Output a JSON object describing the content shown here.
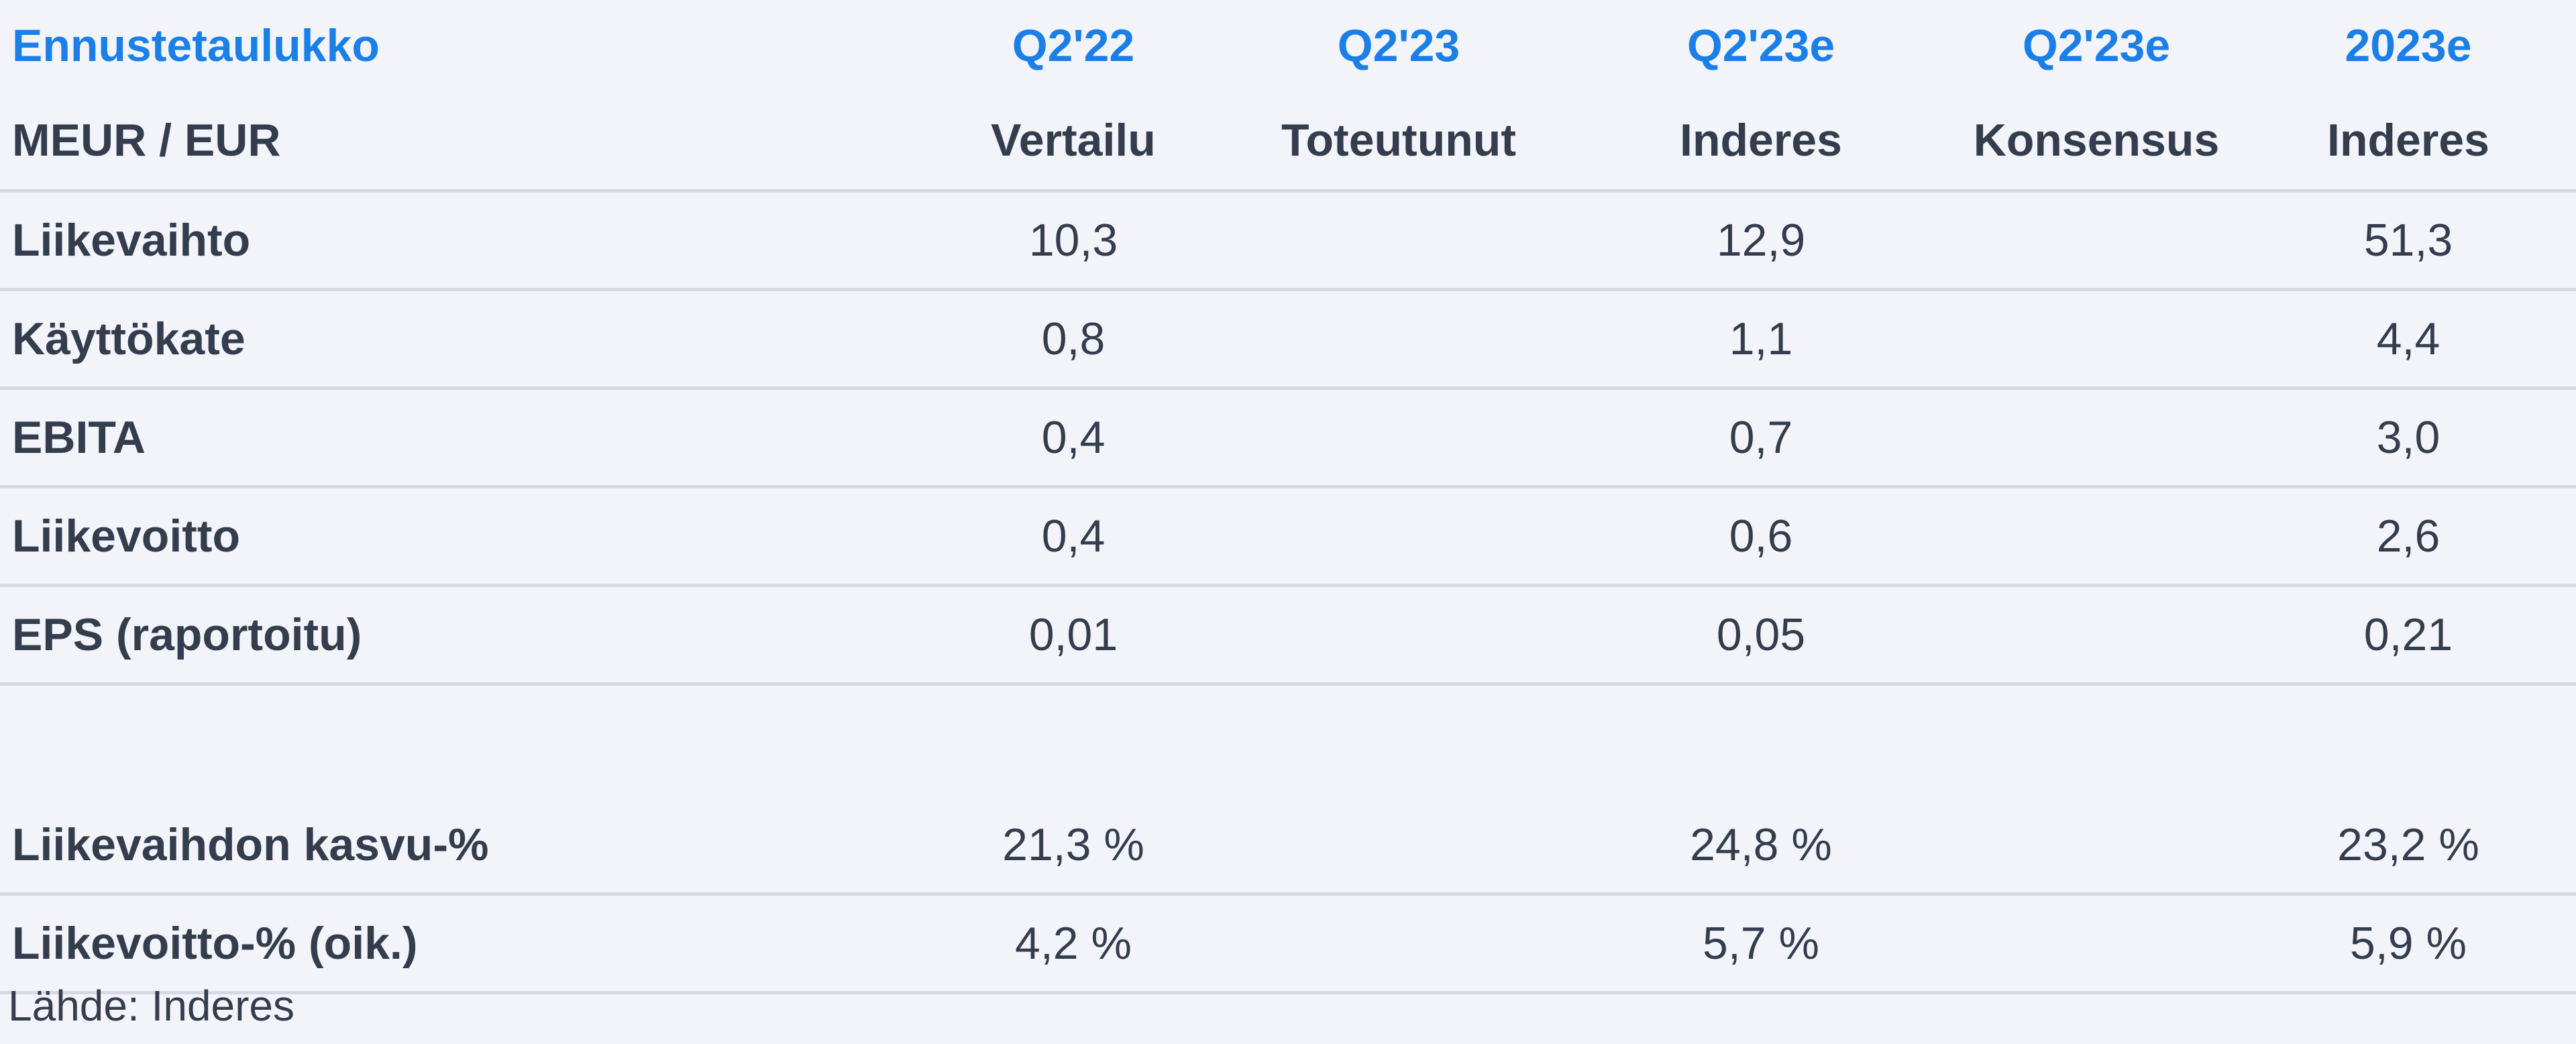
{
  "title": "Ennustetaulukko",
  "unit_label": "MEUR / EUR",
  "columns": [
    {
      "period": "Q2'22",
      "type": "Vertailu"
    },
    {
      "period": "Q2'23",
      "type": "Toteutunut"
    },
    {
      "period": "Q2'23e",
      "type": "Inderes"
    },
    {
      "period": "Q2'23e",
      "type": "Konsensus"
    },
    {
      "period": "2023e",
      "type": "Inderes"
    }
  ],
  "rows": [
    {
      "label": "Liikevaihto",
      "values": [
        "10,3",
        "",
        "12,9",
        "",
        "51,3"
      ]
    },
    {
      "label": "Käyttökate",
      "values": [
        "0,8",
        "",
        "1,1",
        "",
        "4,4"
      ]
    },
    {
      "label": "EBITA",
      "values": [
        "0,4",
        "",
        "0,7",
        "",
        "3,0"
      ]
    },
    {
      "label": "Liikevoitto",
      "values": [
        "0,4",
        "",
        "0,6",
        "",
        "2,6"
      ]
    },
    {
      "label": "EPS (raportoitu)",
      "values": [
        "0,01",
        "",
        "0,05",
        "",
        "0,21"
      ]
    }
  ],
  "rows2": [
    {
      "label": "Liikevaihdon kasvu-%",
      "values": [
        "21,3 %",
        "",
        "24,8 %",
        "",
        "23,2 %"
      ]
    },
    {
      "label": "Liikevoitto-% (oik.)",
      "values": [
        "4,2 %",
        "",
        "5,7 %",
        "",
        "5,9 %"
      ]
    }
  ],
  "source": "Lähde: Inderes",
  "colors": {
    "background": "#f3f4fa",
    "header_accent": "#1b7fe8",
    "text": "#333d4d",
    "rule": "#d6d9df"
  }
}
